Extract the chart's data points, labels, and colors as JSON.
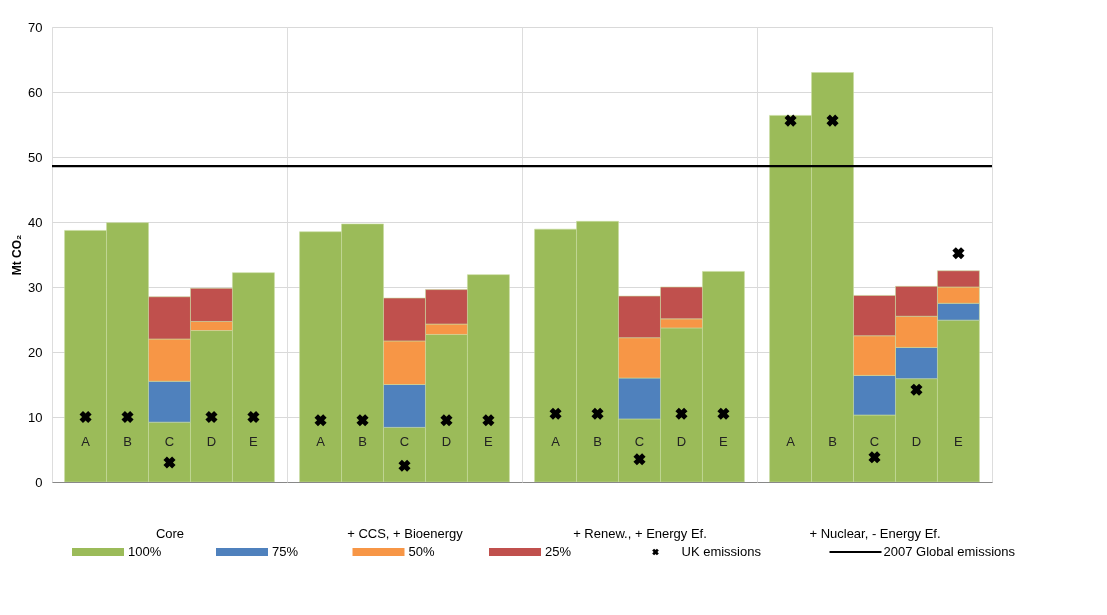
{
  "chart_data": [
    {
      "type": "bar",
      "stacked": true,
      "xlabel": "Core",
      "ylabel": "Mt CO₂",
      "categories": [
        "A",
        "B",
        "C",
        "D",
        "E"
      ],
      "ylim": [
        0,
        70
      ],
      "yticks": [
        0,
        10,
        20,
        30,
        40,
        50,
        60,
        70
      ],
      "grid": "y",
      "legend": "bottom",
      "series": [
        {
          "name": "100%",
          "color": "#9bbb59",
          "values": [
            38.7,
            39.9,
            9.2,
            23.3,
            32.2
          ]
        },
        {
          "name": "75%",
          "color": "#4f81bd",
          "values": [
            null,
            null,
            6.3,
            null,
            null
          ]
        },
        {
          "name": "50%",
          "color": "#f79646",
          "values": [
            null,
            null,
            6.5,
            1.4,
            null
          ]
        },
        {
          "name": "25%",
          "color": "#c0504d",
          "values": [
            null,
            null,
            6.5,
            5.1,
            null
          ]
        },
        {
          "name": "UK emissions",
          "type": "scatter",
          "marker": "cross",
          "color": "#000000",
          "x": [
            "A",
            "B",
            "C",
            "D",
            "E"
          ],
          "values": [
            10,
            10,
            3,
            10,
            10
          ]
        }
      ],
      "ref_lines": [
        {
          "axis": "y",
          "value": 48.6,
          "label": "2007 Global emissions",
          "color": "#000000"
        }
      ]
    },
    {
      "type": "bar",
      "stacked": true,
      "xlabel": "+ CCS, + Bioenergy",
      "categories": [
        "A",
        "B",
        "C",
        "D",
        "E"
      ],
      "ylim": [
        0,
        70
      ],
      "yticks": [
        0,
        10,
        20,
        30,
        40,
        50,
        60,
        70
      ],
      "grid": "y",
      "tick_labels": "x",
      "series": [
        {
          "color": "#9bbb59",
          "values": [
            38.5,
            39.7,
            8.4,
            22.7,
            31.9
          ]
        },
        {
          "color": "#4f81bd",
          "values": [
            null,
            null,
            6.6,
            null,
            null
          ]
        },
        {
          "color": "#f79646",
          "values": [
            null,
            null,
            6.7,
            1.6,
            null
          ]
        },
        {
          "color": "#c0504d",
          "values": [
            null,
            null,
            6.6,
            5.3,
            null
          ]
        },
        {
          "type": "scatter",
          "marker": "cross",
          "color": "#000000",
          "x": [
            "A",
            "B",
            "C",
            "D",
            "E"
          ],
          "values": [
            9.5,
            9.5,
            2.5,
            9.5,
            9.5
          ]
        }
      ],
      "ref_lines": [
        {
          "axis": "y",
          "value": 48.6,
          "color": "#000000"
        }
      ]
    },
    {
      "type": "bar",
      "stacked": true,
      "xlabel": "+ Renew., + Energy Ef.",
      "categories": [
        "A",
        "B",
        "C",
        "D",
        "E"
      ],
      "ylim": [
        0,
        70
      ],
      "yticks": [
        0,
        10,
        20,
        30,
        40,
        50,
        60,
        70
      ],
      "grid": "y",
      "tick_labels": "x",
      "series": [
        {
          "color": "#9bbb59",
          "values": [
            38.9,
            40.1,
            9.7,
            23.7,
            32.4
          ]
        },
        {
          "color": "#4f81bd",
          "values": [
            null,
            null,
            6.3,
            null,
            null
          ]
        },
        {
          "color": "#f79646",
          "values": [
            null,
            null,
            6.2,
            1.4,
            null
          ]
        },
        {
          "color": "#c0504d",
          "values": [
            null,
            null,
            6.4,
            4.9,
            null
          ]
        },
        {
          "type": "scatter",
          "marker": "cross",
          "color": "#000000",
          "x": [
            "A",
            "B",
            "C",
            "D",
            "E"
          ],
          "values": [
            10.5,
            10.5,
            3.5,
            10.5,
            10.5
          ]
        }
      ],
      "ref_lines": [
        {
          "axis": "y",
          "value": 48.6,
          "color": "#000000"
        }
      ]
    },
    {
      "type": "bar",
      "stacked": true,
      "xlabel": "+ Nuclear, - Energy Ef.",
      "categories": [
        "A",
        "B",
        "C",
        "D",
        "E"
      ],
      "ylim": [
        0,
        70
      ],
      "yticks": [
        0,
        10,
        20,
        30,
        40,
        50,
        60,
        70
      ],
      "grid": "y",
      "tick_labels": "x",
      "series": [
        {
          "color": "#9bbb59",
          "values": [
            56.4,
            63.0,
            10.3,
            15.9,
            24.9
          ]
        },
        {
          "color": "#4f81bd",
          "values": [
            null,
            null,
            6.1,
            4.8,
            2.6
          ]
        },
        {
          "color": "#f79646",
          "values": [
            null,
            null,
            6.1,
            4.8,
            2.5
          ]
        },
        {
          "color": "#c0504d",
          "values": [
            null,
            null,
            6.2,
            4.6,
            2.5
          ]
        },
        {
          "type": "scatter",
          "marker": "cross",
          "color": "#000000",
          "x": [
            "A",
            "B",
            "C",
            "D",
            "E"
          ],
          "values": [
            55.6,
            55.6,
            3.8,
            14.2,
            35.2
          ]
        }
      ],
      "ref_lines": [
        {
          "axis": "y",
          "value": 48.6,
          "color": "#000000"
        }
      ]
    }
  ]
}
